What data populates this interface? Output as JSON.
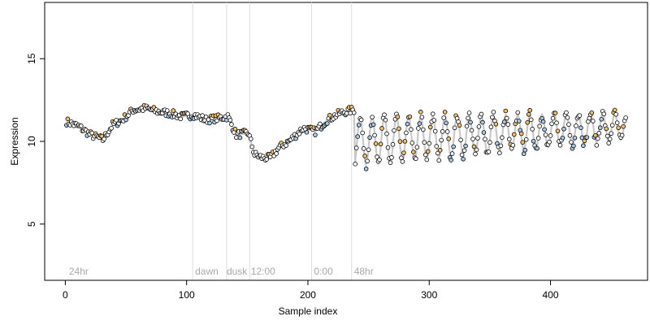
{
  "chart_data": {
    "type": "scatter",
    "xlabel": "Sample index",
    "ylabel": "Expression",
    "xlim": [
      -17,
      480
    ],
    "ylim": [
      1.6,
      18.4
    ],
    "x_ticks": [
      0,
      100,
      200,
      300,
      400
    ],
    "y_ticks": [
      5,
      10,
      15
    ],
    "grid": false,
    "legend": "none",
    "colors": {
      "trend": "#c8c8c8",
      "point_high": "#f5c06a",
      "point_low": "#a8c8e8",
      "point_mid": "#ffffff",
      "point_stroke": "#000000",
      "divider": "#dddddd",
      "annotation_text": "#a8a8a8"
    },
    "vertical_lines": [
      105,
      133,
      152,
      203,
      236
    ],
    "annotations": [
      {
        "x": 3,
        "text": "24hr"
      },
      {
        "x": 107,
        "text": "dawn"
      },
      {
        "x": 133,
        "text": "dusk"
      },
      {
        "x": 153,
        "text": "12:00"
      },
      {
        "x": 205,
        "text": "0:00"
      },
      {
        "x": 238,
        "text": "48hr"
      }
    ],
    "annotation_y": 1.95,
    "trend_anchors": [
      [
        0,
        11.2
      ],
      [
        10,
        10.9
      ],
      [
        20,
        10.4
      ],
      [
        30,
        10.1
      ],
      [
        38,
        11.0
      ],
      [
        46,
        11.3
      ],
      [
        55,
        11.9
      ],
      [
        65,
        12.0
      ],
      [
        75,
        11.8
      ],
      [
        85,
        11.7
      ],
      [
        95,
        11.5
      ],
      [
        105,
        11.6
      ],
      [
        115,
        11.3
      ],
      [
        125,
        11.4
      ],
      [
        133,
        11.5
      ],
      [
        140,
        10.4
      ],
      [
        150,
        10.5
      ],
      [
        155,
        9.2
      ],
      [
        162,
        9.0
      ],
      [
        168,
        9.0
      ],
      [
        175,
        9.6
      ],
      [
        185,
        10.1
      ],
      [
        195,
        10.8
      ],
      [
        205,
        10.6
      ],
      [
        215,
        11.3
      ],
      [
        225,
        11.7
      ],
      [
        236,
        11.9
      ]
    ],
    "osc_start": 237,
    "osc_end": 462,
    "osc_period": 10,
    "osc_base_start": 10.0,
    "osc_base_end": 10.9,
    "osc_amp_start": 1.5,
    "osc_amp_end": 0.8,
    "n_points": 462
  }
}
